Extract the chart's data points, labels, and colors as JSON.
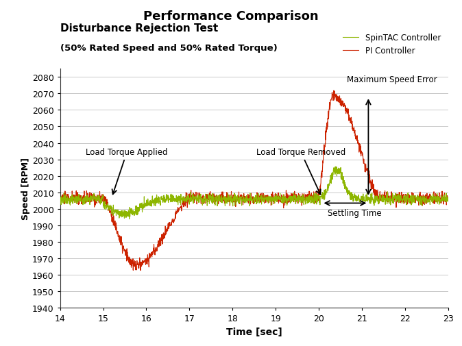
{
  "title": "Performance Comparison",
  "subtitle": "Disturbance Rejection Test",
  "subtitle2": "(50% Rated Speed and 50% Rated Torque)",
  "xlabel": "Time [sec]",
  "ylabel": "Speed [RPM]",
  "xlim": [
    14,
    23
  ],
  "ylim": [
    1940,
    2085
  ],
  "yticks": [
    1940,
    1950,
    1960,
    1970,
    1980,
    1990,
    2000,
    2010,
    2020,
    2030,
    2040,
    2050,
    2060,
    2070,
    2080
  ],
  "xticks": [
    14,
    15,
    16,
    17,
    18,
    19,
    20,
    21,
    22,
    23
  ],
  "spintac_color": "#8db600",
  "pi_color": "#cc2200",
  "background_color": "#ffffff",
  "grid_color": "#c8c8c8",
  "base_speed": 2006.5,
  "noise_amp_pi": 1.8,
  "noise_amp_spintac": 1.5,
  "legend": {
    "spintac_label": "SpinTAC Controller",
    "pi_label": "PI Controller"
  }
}
